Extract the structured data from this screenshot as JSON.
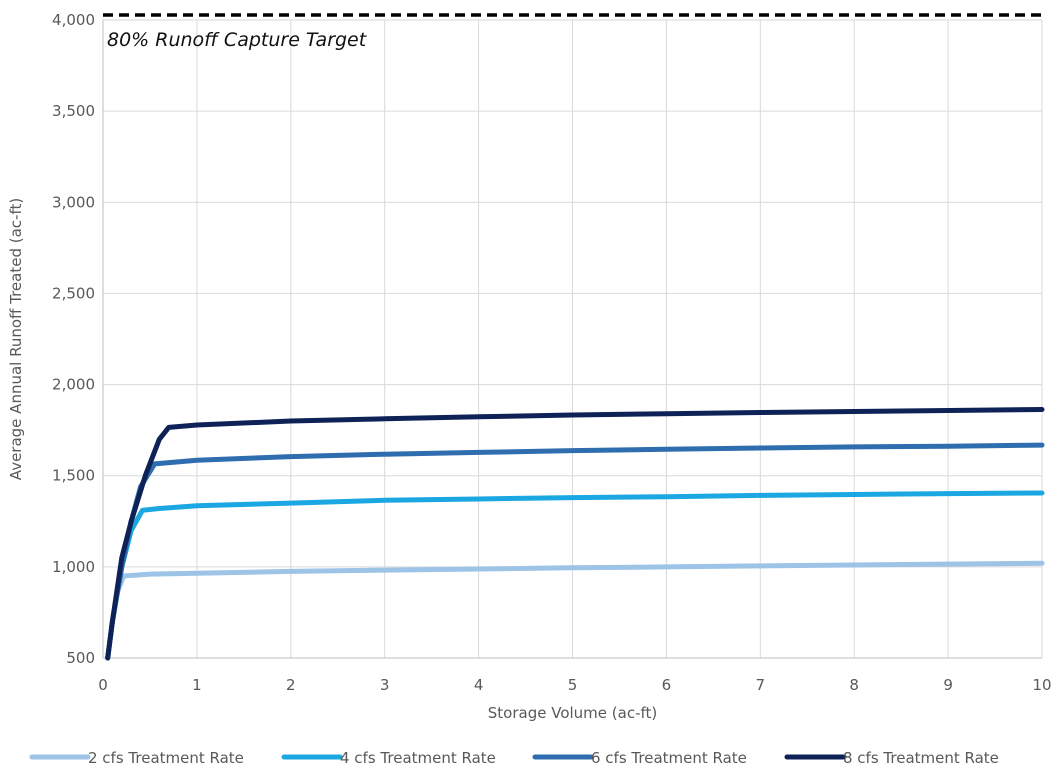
{
  "chart_data": {
    "type": "line",
    "title": "",
    "xlabel": "Storage Volume (ac-ft)",
    "ylabel": "Average Annual Runoff Treated (ac-ft)",
    "xlim": [
      0,
      10
    ],
    "ylim": [
      500,
      4000
    ],
    "x_ticks": [
      "0",
      "1",
      "2",
      "3",
      "4",
      "5",
      "6",
      "7",
      "8",
      "9",
      "10"
    ],
    "y_ticks": [
      "500",
      "1,000",
      "1,500",
      "2,000",
      "2,500",
      "3,000",
      "3,500",
      "4,000"
    ],
    "grid": true,
    "legend_position": "bottom",
    "reference_line": {
      "label": "80% Runoff Capture Target",
      "y": 4030,
      "color": "#000000",
      "style": "dashed"
    },
    "series": [
      {
        "name": "2 cfs Treatment Rate",
        "color": "#9DC3E6",
        "points": [
          [
            0.05,
            500
          ],
          [
            0.1,
            700
          ],
          [
            0.15,
            860
          ],
          [
            0.22,
            950
          ],
          [
            0.5,
            960
          ],
          [
            1,
            965
          ],
          [
            2,
            975
          ],
          [
            3,
            982
          ],
          [
            4,
            988
          ],
          [
            5,
            995
          ],
          [
            6,
            1000
          ],
          [
            7,
            1005
          ],
          [
            8,
            1010
          ],
          [
            9,
            1015
          ],
          [
            10,
            1020
          ]
        ]
      },
      {
        "name": "4 cfs Treatment Rate",
        "color": "#1AA7E2",
        "points": [
          [
            0.05,
            500
          ],
          [
            0.1,
            700
          ],
          [
            0.2,
            1000
          ],
          [
            0.3,
            1200
          ],
          [
            0.42,
            1310
          ],
          [
            0.6,
            1320
          ],
          [
            1,
            1335
          ],
          [
            2,
            1350
          ],
          [
            3,
            1365
          ],
          [
            4,
            1372
          ],
          [
            5,
            1380
          ],
          [
            6,
            1385
          ],
          [
            7,
            1392
          ],
          [
            8,
            1397
          ],
          [
            9,
            1402
          ],
          [
            10,
            1405
          ]
        ]
      },
      {
        "name": "6 cfs Treatment Rate",
        "color": "#2E6DAE",
        "points": [
          [
            0.05,
            500
          ],
          [
            0.1,
            700
          ],
          [
            0.2,
            1000
          ],
          [
            0.3,
            1250
          ],
          [
            0.4,
            1440
          ],
          [
            0.55,
            1565
          ],
          [
            1,
            1585
          ],
          [
            2,
            1605
          ],
          [
            3,
            1618
          ],
          [
            4,
            1628
          ],
          [
            5,
            1638
          ],
          [
            6,
            1645
          ],
          [
            7,
            1652
          ],
          [
            8,
            1658
          ],
          [
            9,
            1662
          ],
          [
            10,
            1668
          ]
        ]
      },
      {
        "name": "8 cfs Treatment Rate",
        "color": "#0F2257",
        "points": [
          [
            0.05,
            500
          ],
          [
            0.1,
            700
          ],
          [
            0.2,
            1050
          ],
          [
            0.3,
            1250
          ],
          [
            0.45,
            1500
          ],
          [
            0.6,
            1700
          ],
          [
            0.7,
            1765
          ],
          [
            1,
            1778
          ],
          [
            2,
            1800
          ],
          [
            3,
            1812
          ],
          [
            4,
            1823
          ],
          [
            5,
            1833
          ],
          [
            6,
            1840
          ],
          [
            7,
            1847
          ],
          [
            8,
            1852
          ],
          [
            9,
            1858
          ],
          [
            10,
            1863
          ]
        ]
      }
    ]
  }
}
